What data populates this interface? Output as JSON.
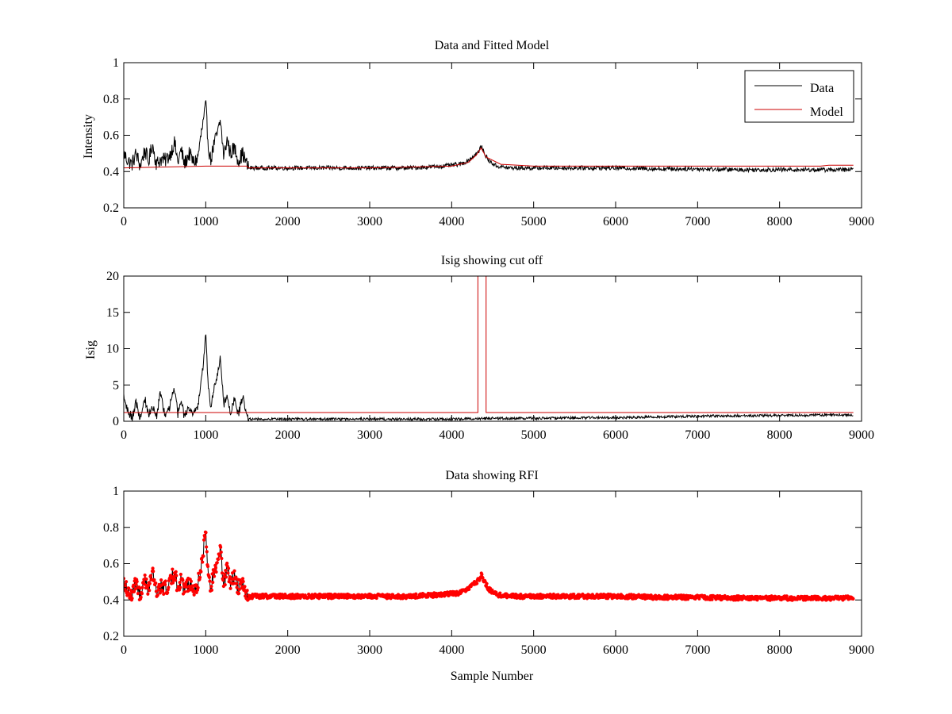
{
  "chart_data": [
    {
      "type": "line",
      "title": "Data and Fitted Model",
      "xlabel": "",
      "ylabel": "Intensity",
      "xlim": [
        0,
        9000
      ],
      "ylim": [
        0.2,
        1
      ],
      "xticks": [
        0,
        1000,
        2000,
        3000,
        4000,
        5000,
        6000,
        7000,
        8000,
        9000
      ],
      "yticks": [
        0.2,
        0.4,
        0.6,
        0.8,
        1
      ],
      "ytick_labels": [
        "0.2",
        "0.4",
        "0.6",
        "0.8",
        "1"
      ],
      "grid": false,
      "legend": "top-right",
      "series": [
        {
          "name": "Data",
          "color": "#000000",
          "style": "line-noisy",
          "x": [
            0,
            50,
            100,
            150,
            200,
            260,
            300,
            350,
            400,
            450,
            500,
            560,
            620,
            660,
            700,
            740,
            800,
            850,
            900,
            950,
            980,
            1000,
            1030,
            1060,
            1100,
            1150,
            1180,
            1220,
            1260,
            1300,
            1350,
            1400,
            1450,
            1500,
            1520,
            1700,
            2000,
            2500,
            3000,
            3500,
            3900,
            4100,
            4200,
            4280,
            4330,
            4360,
            4390,
            4450,
            4550,
            4700,
            5000,
            5500,
            6000,
            6500,
            7000,
            7500,
            8000,
            8500,
            8900
          ],
          "y": [
            0.5,
            0.46,
            0.44,
            0.5,
            0.43,
            0.52,
            0.45,
            0.55,
            0.44,
            0.47,
            0.46,
            0.49,
            0.56,
            0.45,
            0.52,
            0.44,
            0.5,
            0.45,
            0.47,
            0.62,
            0.7,
            0.77,
            0.55,
            0.46,
            0.55,
            0.62,
            0.68,
            0.48,
            0.58,
            0.5,
            0.53,
            0.46,
            0.5,
            0.44,
            0.42,
            0.42,
            0.42,
            0.42,
            0.42,
            0.42,
            0.43,
            0.44,
            0.46,
            0.49,
            0.51,
            0.54,
            0.51,
            0.46,
            0.43,
            0.42,
            0.42,
            0.42,
            0.42,
            0.415,
            0.415,
            0.41,
            0.41,
            0.41,
            0.41
          ],
          "noise": 0.012
        },
        {
          "name": "Model",
          "color": "#cc0000",
          "style": "line",
          "x": [
            0,
            1000,
            1500,
            1520,
            3000,
            4000,
            4200,
            4300,
            4360,
            4420,
            4600,
            5000,
            7000,
            8500,
            8600,
            8900
          ],
          "y": [
            0.42,
            0.43,
            0.43,
            0.42,
            0.42,
            0.43,
            0.45,
            0.49,
            0.53,
            0.48,
            0.44,
            0.43,
            0.43,
            0.43,
            0.435,
            0.435
          ]
        }
      ]
    },
    {
      "type": "line",
      "title": "Isig showing cut off",
      "xlabel": "",
      "ylabel": "Isig",
      "xlim": [
        0,
        9000
      ],
      "ylim": [
        0,
        20
      ],
      "xticks": [
        0,
        1000,
        2000,
        3000,
        4000,
        5000,
        6000,
        7000,
        8000,
        9000
      ],
      "yticks": [
        0,
        5,
        10,
        15,
        20
      ],
      "ytick_labels": [
        "0",
        "5",
        "10",
        "15",
        "20"
      ],
      "grid": false,
      "series": [
        {
          "name": "",
          "color": "#000000",
          "style": "line-noisy",
          "x": [
            0,
            50,
            100,
            150,
            200,
            260,
            300,
            350,
            400,
            450,
            500,
            560,
            620,
            660,
            700,
            740,
            800,
            850,
            900,
            950,
            980,
            1000,
            1030,
            1060,
            1100,
            1150,
            1180,
            1220,
            1260,
            1300,
            1350,
            1400,
            1450,
            1500,
            1520,
            2000,
            3000,
            4000,
            4500,
            5000,
            6000,
            7000,
            8000,
            8900
          ],
          "y": [
            3.5,
            1.5,
            0.5,
            2.5,
            0.5,
            3.0,
            1.0,
            2.0,
            0.8,
            4.0,
            1.0,
            2.0,
            4.5,
            1.0,
            3.0,
            0.5,
            2.0,
            1.0,
            1.5,
            6.0,
            9.0,
            12.0,
            5.0,
            1.5,
            4.5,
            7.0,
            9.0,
            2.0,
            4.0,
            1.0,
            3.0,
            1.0,
            3.5,
            1.0,
            0.3,
            0.3,
            0.3,
            0.3,
            0.4,
            0.4,
            0.5,
            0.7,
            0.8,
            0.9
          ],
          "noise": 0.18
        },
        {
          "name": "",
          "color": "#cc0000",
          "style": "line",
          "x": [
            0,
            4320,
            4320,
            4420,
            4420,
            8900
          ],
          "y": [
            1.2,
            1.2,
            20,
            20,
            1.2,
            1.2
          ]
        }
      ]
    },
    {
      "type": "scatter",
      "title": "Data showing RFI",
      "xlabel": "Sample Number",
      "ylabel": "",
      "xlim": [
        0,
        9000
      ],
      "ylim": [
        0.2,
        1
      ],
      "xticks": [
        0,
        1000,
        2000,
        3000,
        4000,
        5000,
        6000,
        7000,
        8000,
        9000
      ],
      "yticks": [
        0.2,
        0.4,
        0.6,
        0.8,
        1
      ],
      "ytick_labels": [
        "0.2",
        "0.4",
        "0.6",
        "0.8",
        "1"
      ],
      "grid": false,
      "series": [
        {
          "name": "",
          "color": "#000000",
          "style": "line-noisy",
          "x": [
            0,
            50,
            100,
            150,
            200,
            260,
            300,
            350,
            400,
            450,
            500,
            560,
            620,
            660,
            700,
            740,
            800,
            850,
            900,
            950,
            980,
            1000,
            1030,
            1060,
            1100,
            1150,
            1180,
            1220,
            1260,
            1300,
            1350,
            1400,
            1450,
            1500,
            1520,
            1700,
            2000,
            2500,
            3000,
            3500,
            3900,
            4100,
            4200,
            4280,
            4330,
            4360,
            4390,
            4450,
            4550,
            4700,
            5000,
            5500,
            6000,
            6500,
            7000,
            7500,
            8000,
            8500,
            8900
          ],
          "y": [
            0.5,
            0.46,
            0.44,
            0.5,
            0.43,
            0.52,
            0.45,
            0.55,
            0.44,
            0.47,
            0.46,
            0.49,
            0.56,
            0.45,
            0.52,
            0.44,
            0.5,
            0.45,
            0.47,
            0.62,
            0.7,
            0.77,
            0.55,
            0.46,
            0.55,
            0.62,
            0.68,
            0.48,
            0.58,
            0.5,
            0.53,
            0.46,
            0.5,
            0.44,
            0.42,
            0.42,
            0.42,
            0.42,
            0.42,
            0.42,
            0.43,
            0.44,
            0.46,
            0.49,
            0.51,
            0.54,
            0.51,
            0.46,
            0.43,
            0.42,
            0.42,
            0.42,
            0.42,
            0.415,
            0.415,
            0.41,
            0.41,
            0.41,
            0.41
          ],
          "noise": 0.012
        },
        {
          "name": "",
          "color": "#ff0000",
          "style": "markers",
          "x": [
            0,
            50,
            100,
            150,
            200,
            260,
            300,
            350,
            400,
            450,
            500,
            560,
            620,
            660,
            700,
            740,
            800,
            850,
            900,
            950,
            980,
            1000,
            1030,
            1060,
            1100,
            1150,
            1180,
            1220,
            1260,
            1300,
            1350,
            1400,
            1450,
            1500,
            1520,
            1700,
            2000,
            2500,
            3000,
            3500,
            3900,
            4100,
            4200,
            4280,
            4330,
            4360,
            4390,
            4450,
            4550,
            4700,
            5000,
            5500,
            6000,
            6500,
            7000,
            7500,
            8000,
            8500,
            8900
          ],
          "y": [
            0.5,
            0.46,
            0.44,
            0.5,
            0.43,
            0.52,
            0.45,
            0.55,
            0.44,
            0.47,
            0.46,
            0.49,
            0.56,
            0.45,
            0.52,
            0.44,
            0.5,
            0.45,
            0.47,
            0.62,
            0.7,
            0.77,
            0.55,
            0.46,
            0.55,
            0.62,
            0.68,
            0.48,
            0.58,
            0.5,
            0.53,
            0.46,
            0.5,
            0.44,
            0.42,
            0.42,
            0.42,
            0.42,
            0.42,
            0.42,
            0.43,
            0.44,
            0.46,
            0.49,
            0.51,
            0.54,
            0.51,
            0.46,
            0.43,
            0.42,
            0.42,
            0.42,
            0.42,
            0.415,
            0.415,
            0.41,
            0.41,
            0.41,
            0.41
          ],
          "noise": 0.012
        }
      ]
    }
  ]
}
